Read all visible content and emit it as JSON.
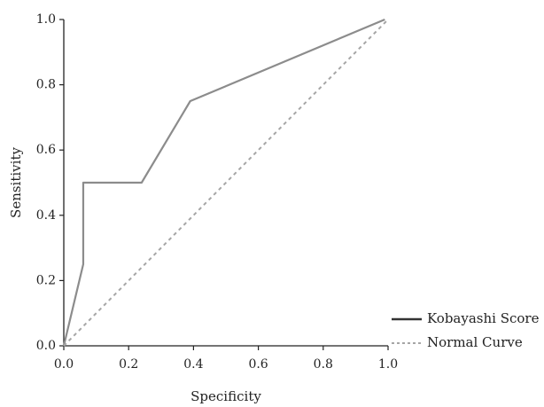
{
  "chart_data": {
    "type": "line",
    "xlabel": "Specificity",
    "ylabel": "Sensitivity",
    "xlim": [
      0,
      1
    ],
    "ylim": [
      0,
      1
    ],
    "x_ticks": [
      "0.0",
      "0.2",
      "0.4",
      "0.6",
      "0.8",
      "1.0"
    ],
    "y_ticks": [
      "0.0",
      "0.2",
      "0.4",
      "0.6",
      "0.8",
      "1.0"
    ],
    "grid": false,
    "legend_position": "right",
    "series": [
      {
        "name": "Kobayashi Score",
        "style": "solid",
        "color": "#8c8c8c",
        "points": [
          [
            0,
            0
          ],
          [
            0.06,
            0.25
          ],
          [
            0.06,
            0.5
          ],
          [
            0.24,
            0.5
          ],
          [
            0.39,
            0.75
          ],
          [
            0.99,
            1.0
          ]
        ]
      },
      {
        "name": "Normal Curve",
        "style": "dashed",
        "color": "#a6a6a6",
        "points": [
          [
            0,
            0
          ],
          [
            1.0,
            1.0
          ]
        ]
      }
    ]
  }
}
